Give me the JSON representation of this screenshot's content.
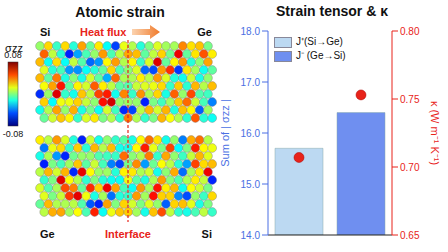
{
  "left_panel": {
    "title": "Atomic strain",
    "colorbar": {
      "label": "σzz",
      "range": [
        -0.08,
        0.08
      ],
      "ticks": [
        -0.08,
        0.08
      ]
    },
    "top_slab": {
      "left_label": "Si",
      "right_label": "Ge",
      "arrow_label": "Heat flux"
    },
    "bottom_slab": {
      "left_label": "Ge",
      "right_label": "Si",
      "line_label": "Interface"
    }
  },
  "chart_data": {
    "type": "bar",
    "title": "Strain tensor & κ",
    "categories": [
      "J⁺(Si→Ge)",
      "J⁻ (Ge→Si)"
    ],
    "series": [
      {
        "type": "bar",
        "colors": [
          "#bcd9f2",
          "#6f8ff0"
        ],
        "values": [
          15.7,
          16.4
        ]
      },
      {
        "type": "scatter",
        "axis": "y2",
        "color": "#e8231a",
        "marker": "circle",
        "values": [
          0.707,
          0.753
        ]
      }
    ],
    "ylabel": "Sum of | σzz |",
    "y2label": "κ (W m⁻¹ K⁻¹)",
    "ylim": [
      14,
      18
    ],
    "yticks": [
      {
        "value": 14,
        "label": "14.0"
      },
      {
        "value": 15,
        "label": "15.0"
      },
      {
        "value": 16,
        "label": "16.0"
      },
      {
        "value": 17,
        "label": "17.0"
      },
      {
        "value": 18,
        "label": "18.0"
      }
    ],
    "y2lim": [
      0.65,
      0.8
    ],
    "y2ticks": [
      0.65,
      {
        "value": 0.7,
        "label": "0.70"
      },
      0.75,
      {
        "value": 0.8,
        "label": "0.80"
      }
    ],
    "legend": "upper left",
    "tick_labels": "y"
  }
}
